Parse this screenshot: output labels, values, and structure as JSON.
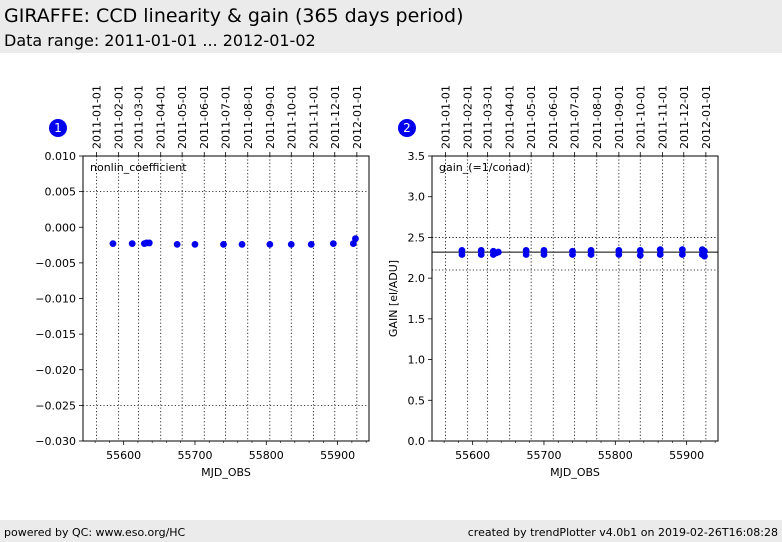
{
  "header": {
    "title": "GIRAFFE: CCD linearity & gain (365 days period)",
    "subtitle": "Data range: 2011-01-01 ... 2012-01-02"
  },
  "footer": {
    "left": "powered by QC: www.eso.org/HC",
    "right": "created by trendPlotter v4.0b1 on 2019-02-26T16:08:28"
  },
  "colors": {
    "marker": "#0000ee",
    "badge": "#0000ee",
    "header_bg": "#ebebeb"
  },
  "chart_data": [
    {
      "type": "scatter",
      "badge": "1",
      "annotation": "nonlin_coefficient",
      "xlabel": "MJD_OBS",
      "ylabel": "",
      "xlim": [
        55543,
        55944
      ],
      "ylim": [
        -0.03,
        0.01
      ],
      "x_ticks": [
        55600,
        55700,
        55800,
        55900
      ],
      "y_ticks": [
        -0.03,
        -0.025,
        -0.02,
        -0.015,
        -0.01,
        -0.005,
        0.0,
        0.005,
        0.01
      ],
      "y_tick_labels": [
        "−0.030",
        "−0.025",
        "−0.020",
        "−0.015",
        "−0.010",
        "−0.005",
        "0.000",
        "0.005",
        "0.010"
      ],
      "hlines_dotted": [
        0.005,
        -0.025
      ],
      "date_ticks": [
        "2011-01-01",
        "2011-02-01",
        "2011-03-01",
        "2011-04-01",
        "2011-05-01",
        "2011-06-01",
        "2011-07-01",
        "2011-08-01",
        "2011-09-01",
        "2011-10-01",
        "2011-11-01",
        "2011-12-01",
        "2012-01-01"
      ],
      "date_ticks_mjd": [
        55562,
        55593,
        55621,
        55652,
        55682,
        55713,
        55743,
        55774,
        55805,
        55835,
        55866,
        55896,
        55927
      ],
      "series": [
        {
          "x": [
            55585,
            55612,
            55629,
            55632,
            55636,
            55675,
            55700,
            55740,
            55766,
            55805,
            55835,
            55863,
            55894,
            55922,
            55925
          ],
          "y": [
            -0.0023,
            -0.0023,
            -0.0023,
            -0.0022,
            -0.0022,
            -0.0024,
            -0.0024,
            -0.0024,
            -0.0024,
            -0.0024,
            -0.0024,
            -0.0024,
            -0.0023,
            -0.0023,
            -0.0016
          ]
        }
      ]
    },
    {
      "type": "scatter",
      "badge": "2",
      "annotation": "gain_(=1/conad)",
      "xlabel": "MJD_OBS",
      "ylabel": "GAIN [el/ADU]",
      "xlim": [
        55543,
        55944
      ],
      "ylim": [
        0.0,
        3.5
      ],
      "x_ticks": [
        55600,
        55700,
        55800,
        55900
      ],
      "y_ticks": [
        0.0,
        0.5,
        1.0,
        1.5,
        2.0,
        2.5,
        3.0,
        3.5
      ],
      "y_tick_labels": [
        "0.0",
        "0.5",
        "1.0",
        "1.5",
        "2.0",
        "2.5",
        "3.0",
        "3.5"
      ],
      "hline_solid": 2.32,
      "hlines_dotted": [
        2.5,
        2.1
      ],
      "date_ticks": [
        "2011-01-01",
        "2011-02-01",
        "2011-03-01",
        "2011-04-01",
        "2011-05-01",
        "2011-06-01",
        "2011-07-01",
        "2011-08-01",
        "2011-09-01",
        "2011-10-01",
        "2011-11-01",
        "2011-12-01",
        "2012-01-01"
      ],
      "date_ticks_mjd": [
        55562,
        55593,
        55621,
        55652,
        55682,
        55713,
        55743,
        55774,
        55805,
        55835,
        55866,
        55896,
        55927
      ],
      "series": [
        {
          "x": [
            55585,
            55585,
            55612,
            55612,
            55629,
            55629,
            55633,
            55636,
            55675,
            55675,
            55700,
            55700,
            55740,
            55740,
            55766,
            55766,
            55805,
            55805,
            55835,
            55835,
            55863,
            55863,
            55894,
            55894,
            55922,
            55922,
            55925,
            55925
          ],
          "y": [
            2.29,
            2.34,
            2.29,
            2.34,
            2.29,
            2.33,
            2.31,
            2.32,
            2.29,
            2.34,
            2.29,
            2.34,
            2.29,
            2.33,
            2.29,
            2.34,
            2.29,
            2.34,
            2.28,
            2.34,
            2.29,
            2.35,
            2.29,
            2.35,
            2.29,
            2.35,
            2.27,
            2.33
          ]
        }
      ]
    }
  ]
}
